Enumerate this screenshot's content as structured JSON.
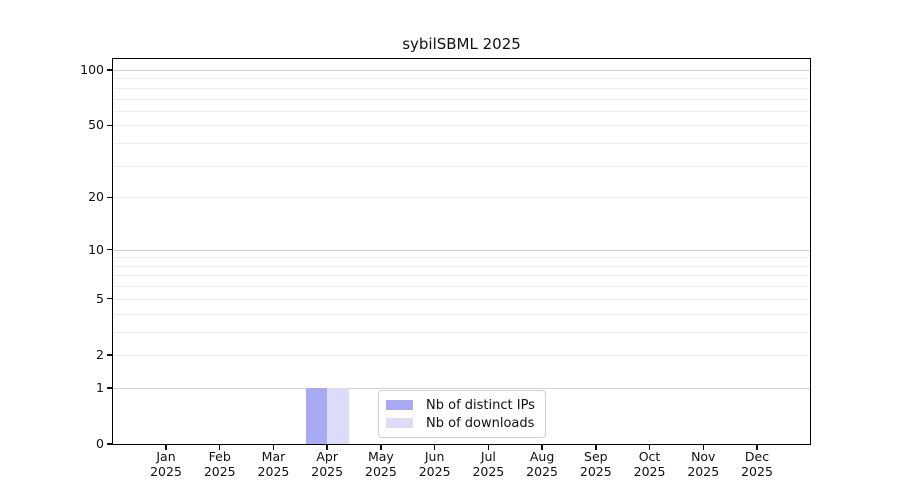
{
  "chart_data": {
    "type": "bar",
    "title": "sybilSBML 2025",
    "year": "2025",
    "categories": [
      "Jan",
      "Feb",
      "Mar",
      "Apr",
      "May",
      "Jun",
      "Jul",
      "Aug",
      "Sep",
      "Oct",
      "Nov",
      "Dec"
    ],
    "series": [
      {
        "name": "Nb of distinct IPs",
        "color": "#aaaaf2",
        "values": [
          0,
          0,
          0,
          1,
          0,
          0,
          0,
          0,
          0,
          0,
          0,
          0
        ]
      },
      {
        "name": "Nb of downloads",
        "color": "#dcdcf8",
        "values": [
          0,
          0,
          0,
          1,
          0,
          0,
          0,
          0,
          0,
          0,
          0,
          0
        ]
      }
    ],
    "yticks": [
      "0",
      "1",
      "2",
      "5",
      "10",
      "20",
      "50",
      "100"
    ],
    "ytick_values": [
      0,
      1,
      2,
      5,
      10,
      20,
      50,
      100
    ],
    "ylim": [
      0,
      114
    ],
    "yscale": "log10(value+1)",
    "grid": true,
    "major_gridlines": [
      1,
      10,
      100
    ],
    "minor_gridlines": [
      2,
      3,
      4,
      5,
      6,
      7,
      8,
      9,
      20,
      30,
      40,
      50,
      60,
      70,
      80,
      90
    ],
    "legend": {
      "position": "lower center",
      "items": [
        "Nb of distinct IPs",
        "Nb of downloads"
      ]
    }
  },
  "colors": {
    "background": "#ffffff",
    "axis": "#000000",
    "major_grid": "#d2d2d2",
    "minor_grid": "#ededed",
    "legend_border": "#d0d0d0",
    "bar_distinct_ips": "#aaaaf2",
    "bar_downloads": "#dcdcf8"
  }
}
